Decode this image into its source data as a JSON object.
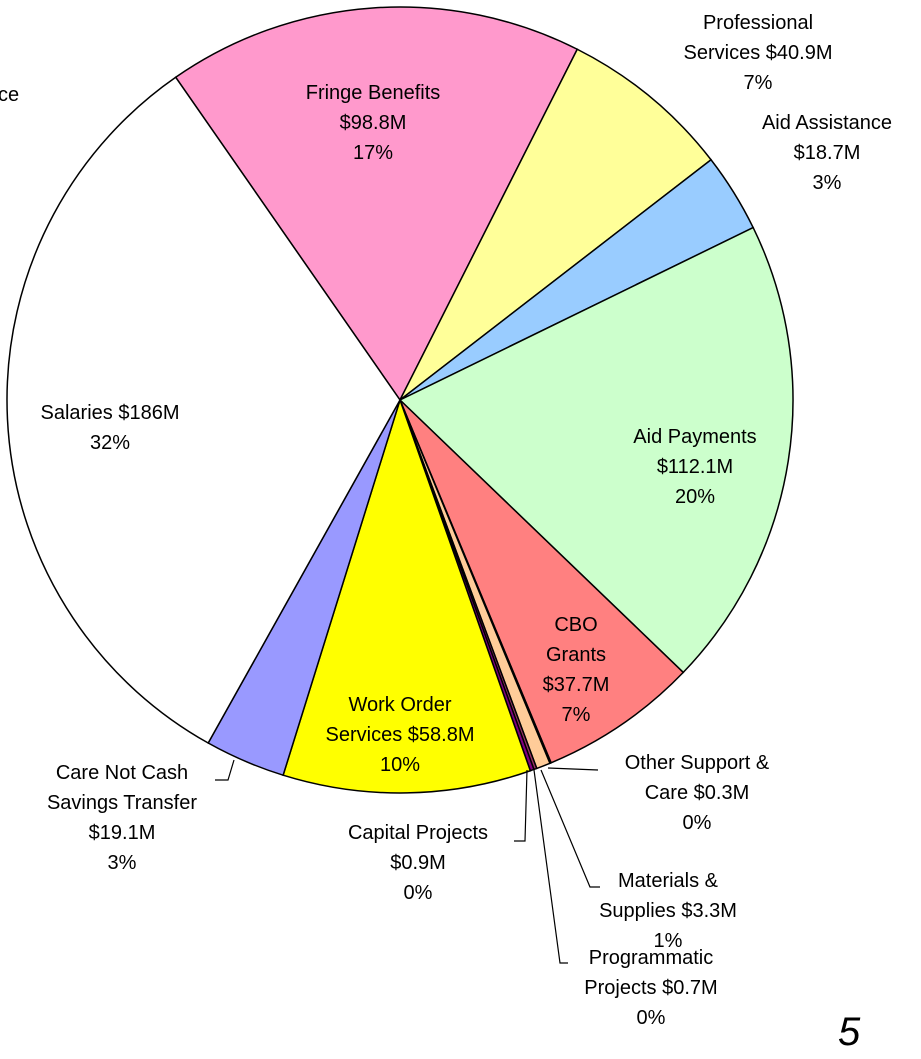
{
  "chart_data": {
    "type": "pie",
    "categories": [
      "Fringe Benefits",
      "Professional Services",
      "Aid Assistance",
      "Aid Payments",
      "CBO Grants",
      "Other Support & Care",
      "Materials & Supplies",
      "Programmatic Projects",
      "Capital Projects",
      "Work Order Services",
      "Care Not Cash Savings Transfer",
      "Salaries"
    ],
    "values": [
      98.8,
      40.9,
      18.7,
      112.1,
      37.7,
      0.3,
      3.3,
      0.7,
      0.9,
      58.8,
      19.1,
      186
    ],
    "value_labels": [
      "$98.8M",
      "$40.9M",
      "$18.7M",
      "$112.1M",
      "$37.7M",
      "$0.3M",
      "$3.3M",
      "$0.7M",
      "$0.9M",
      "$58.8M",
      "$19.1M",
      "$186M"
    ],
    "percent_labels": [
      "17%",
      "7%",
      "3%",
      "20%",
      "7%",
      "0%",
      "1%",
      "0%",
      "0%",
      "10%",
      "3%",
      "32%"
    ],
    "colors": [
      "#ff99cc",
      "#ffff99",
      "#99ccff",
      "#ccffcc",
      "#ff8080",
      "#ff9966",
      "#ffcc99",
      "#993366",
      "#800080",
      "#ffff00",
      "#9999ff",
      "#ffffff"
    ],
    "annotations": [
      "ce",
      "5"
    ]
  }
}
